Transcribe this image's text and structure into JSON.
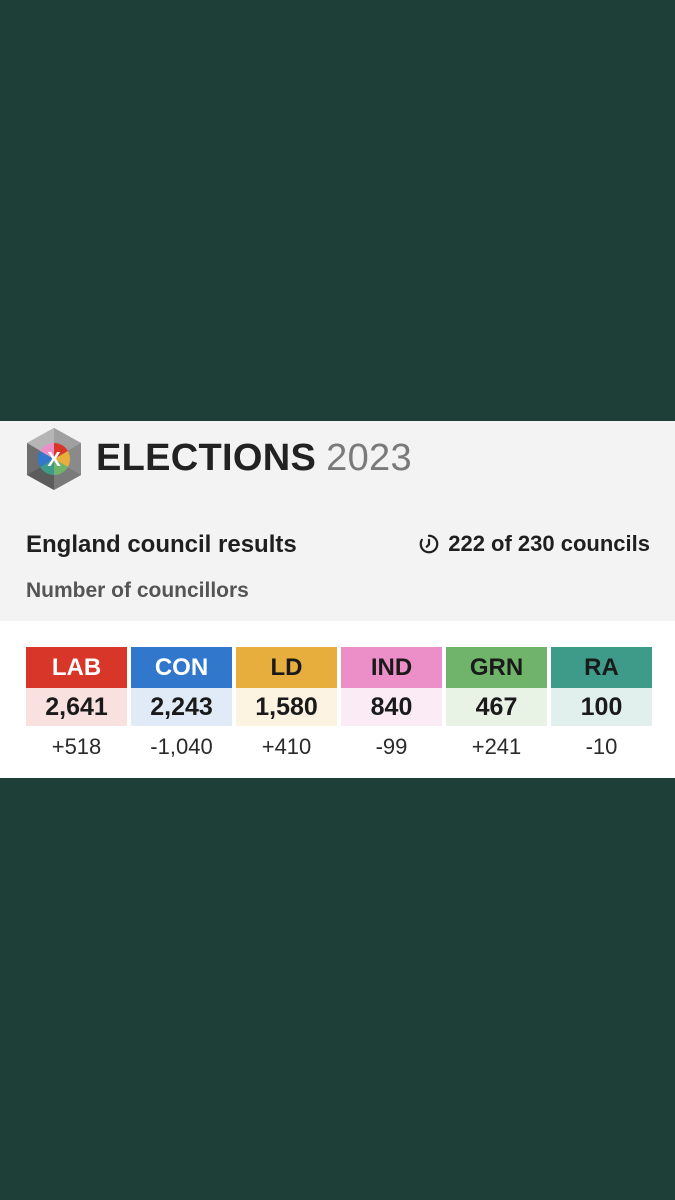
{
  "header": {
    "brand_title": "ELECTIONS",
    "brand_year": "2023",
    "logo_letter": "X"
  },
  "summary": {
    "title": "England council results",
    "progress": "222 of 230 councils",
    "metric_label": "Number of councillors"
  },
  "parties": [
    {
      "abbr": "LAB",
      "seats": "2,641",
      "change": "+518",
      "color": "#d83628",
      "tint": "#f9e1df",
      "text_color": "#ffffff"
    },
    {
      "abbr": "CON",
      "seats": "2,243",
      "change": "-1,040",
      "color": "#3177cc",
      "tint": "#e0ebf7",
      "text_color": "#ffffff"
    },
    {
      "abbr": "LD",
      "seats": "1,580",
      "change": "+410",
      "color": "#e7ad3d",
      "tint": "#fcf3e1",
      "text_color": "#1a1a1a"
    },
    {
      "abbr": "IND",
      "seats": "840",
      "change": "-99",
      "color": "#ec8fc8",
      "tint": "#fbebf5",
      "text_color": "#1a1a1a"
    },
    {
      "abbr": "GRN",
      "seats": "467",
      "change": "+241",
      "color": "#6fb46a",
      "tint": "#e8f3e6",
      "text_color": "#1a1a1a"
    },
    {
      "abbr": "RA",
      "seats": "100",
      "change": "-10",
      "color": "#3e9a89",
      "tint": "#e1f0ed",
      "text_color": "#1a1a1a"
    }
  ],
  "colors": {
    "background": "#1e3f38",
    "card": "#f3f3f3"
  }
}
